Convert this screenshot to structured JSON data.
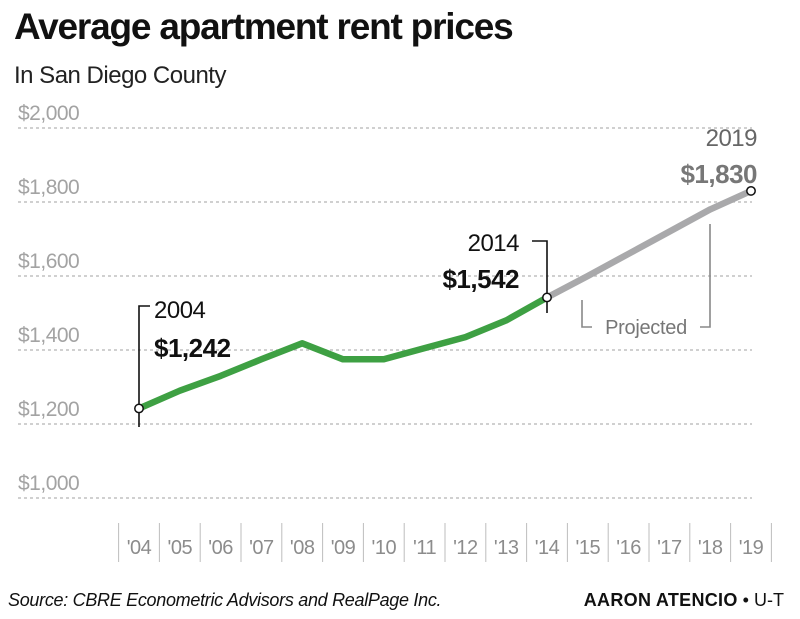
{
  "chart_data": {
    "type": "line",
    "title": "Average apartment rent prices",
    "subtitle": "In San Diego County",
    "xlabel": "",
    "ylabel": "",
    "ylim": [
      1000,
      2000
    ],
    "yticks": [
      1000,
      1200,
      1400,
      1600,
      1800,
      2000
    ],
    "ytick_labels": [
      "$1,000",
      "$1,200",
      "$1,400",
      "$1,600",
      "$1,800",
      "$2,000"
    ],
    "x_tick_labels": [
      "'04",
      "'05",
      "'06",
      "'07",
      "'08",
      "'09",
      "'10",
      "'11",
      "'12",
      "'13",
      "'14",
      "'15",
      "'16",
      "'17",
      "'18",
      "'19"
    ],
    "x": [
      2004,
      2005,
      2006,
      2007,
      2008,
      2009,
      2010,
      2011,
      2012,
      2013,
      2014,
      2015,
      2016,
      2017,
      2018,
      2019
    ],
    "grid": "horizontal dashed",
    "series": [
      {
        "color": "#3ea043",
        "x": [
          2004,
          2005,
          2006,
          2007,
          2008,
          2009,
          2010,
          2011,
          2012,
          2013,
          2014
        ],
        "values": [
          1242,
          1290,
          1330,
          1375,
          1418,
          1375,
          1375,
          1405,
          1435,
          1480,
          1542
        ]
      },
      {
        "name": "Projected",
        "color": "#a9a9ab",
        "x": [
          2014,
          2015,
          2016,
          2017,
          2018,
          2019
        ],
        "values": [
          1542,
          1600,
          1660,
          1720,
          1780,
          1830
        ]
      }
    ],
    "annotations": [
      {
        "year": "2004",
        "value": "$1,242"
      },
      {
        "year": "2014",
        "value": "$1,542"
      },
      {
        "year": "2019",
        "value": "$1,830"
      }
    ]
  },
  "footer": {
    "source": "Source: CBRE Econometric Advisors and RealPage Inc.",
    "author": "AARON ATENCIO",
    "separator": "•",
    "outlet": "U-T"
  },
  "colors": {
    "actual": "#3ea043",
    "projected": "#a9a9ab",
    "grid": "#b5b5b5"
  }
}
